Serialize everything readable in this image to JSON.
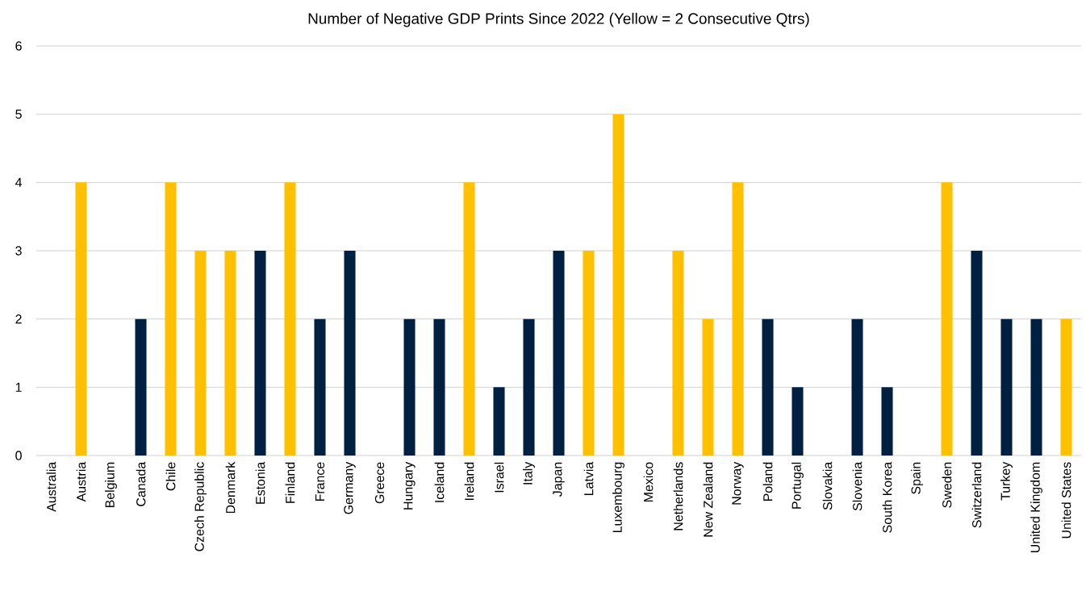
{
  "chart_data": {
    "type": "bar",
    "title": "Number of Negative GDP Prints Since 2022 (Yellow = 2 Consecutive Qtrs)",
    "categories": [
      "Australia",
      "Austria",
      "Belgium",
      "Canada",
      "Chile",
      "Czech Republic",
      "Denmark",
      "Estonia",
      "Finland",
      "France",
      "Germany",
      "Greece",
      "Hungary",
      "Iceland",
      "Ireland",
      "Israel",
      "Italy",
      "Japan",
      "Latvia",
      "Luxembourg",
      "Mexico",
      "Netherlands",
      "New Zealand",
      "Norway",
      "Poland",
      "Portugal",
      "Slovakia",
      "Slovenia",
      "South Korea",
      "Spain",
      "Sweden",
      "Switzerland",
      "Turkey",
      "United Kingdom",
      "United States"
    ],
    "values": [
      0,
      4,
      0,
      2,
      4,
      3,
      3,
      3,
      4,
      2,
      3,
      0,
      2,
      2,
      4,
      1,
      2,
      3,
      3,
      5,
      0,
      3,
      2,
      4,
      2,
      1,
      0,
      2,
      1,
      0,
      4,
      3,
      2,
      2,
      2
    ],
    "colors": [
      "#002041",
      "#ffc000",
      "#002041",
      "#002041",
      "#ffc000",
      "#ffc000",
      "#ffc000",
      "#002041",
      "#ffc000",
      "#002041",
      "#002041",
      "#002041",
      "#002041",
      "#002041",
      "#ffc000",
      "#002041",
      "#002041",
      "#002041",
      "#ffc000",
      "#ffc000",
      "#002041",
      "#ffc000",
      "#ffc000",
      "#ffc000",
      "#002041",
      "#002041",
      "#002041",
      "#002041",
      "#002041",
      "#002041",
      "#ffc000",
      "#002041",
      "#002041",
      "#002041",
      "#ffc000"
    ],
    "ylim": [
      0,
      6
    ],
    "yticks": [
      0,
      1,
      2,
      3,
      4,
      5,
      6
    ],
    "grid": "y"
  }
}
